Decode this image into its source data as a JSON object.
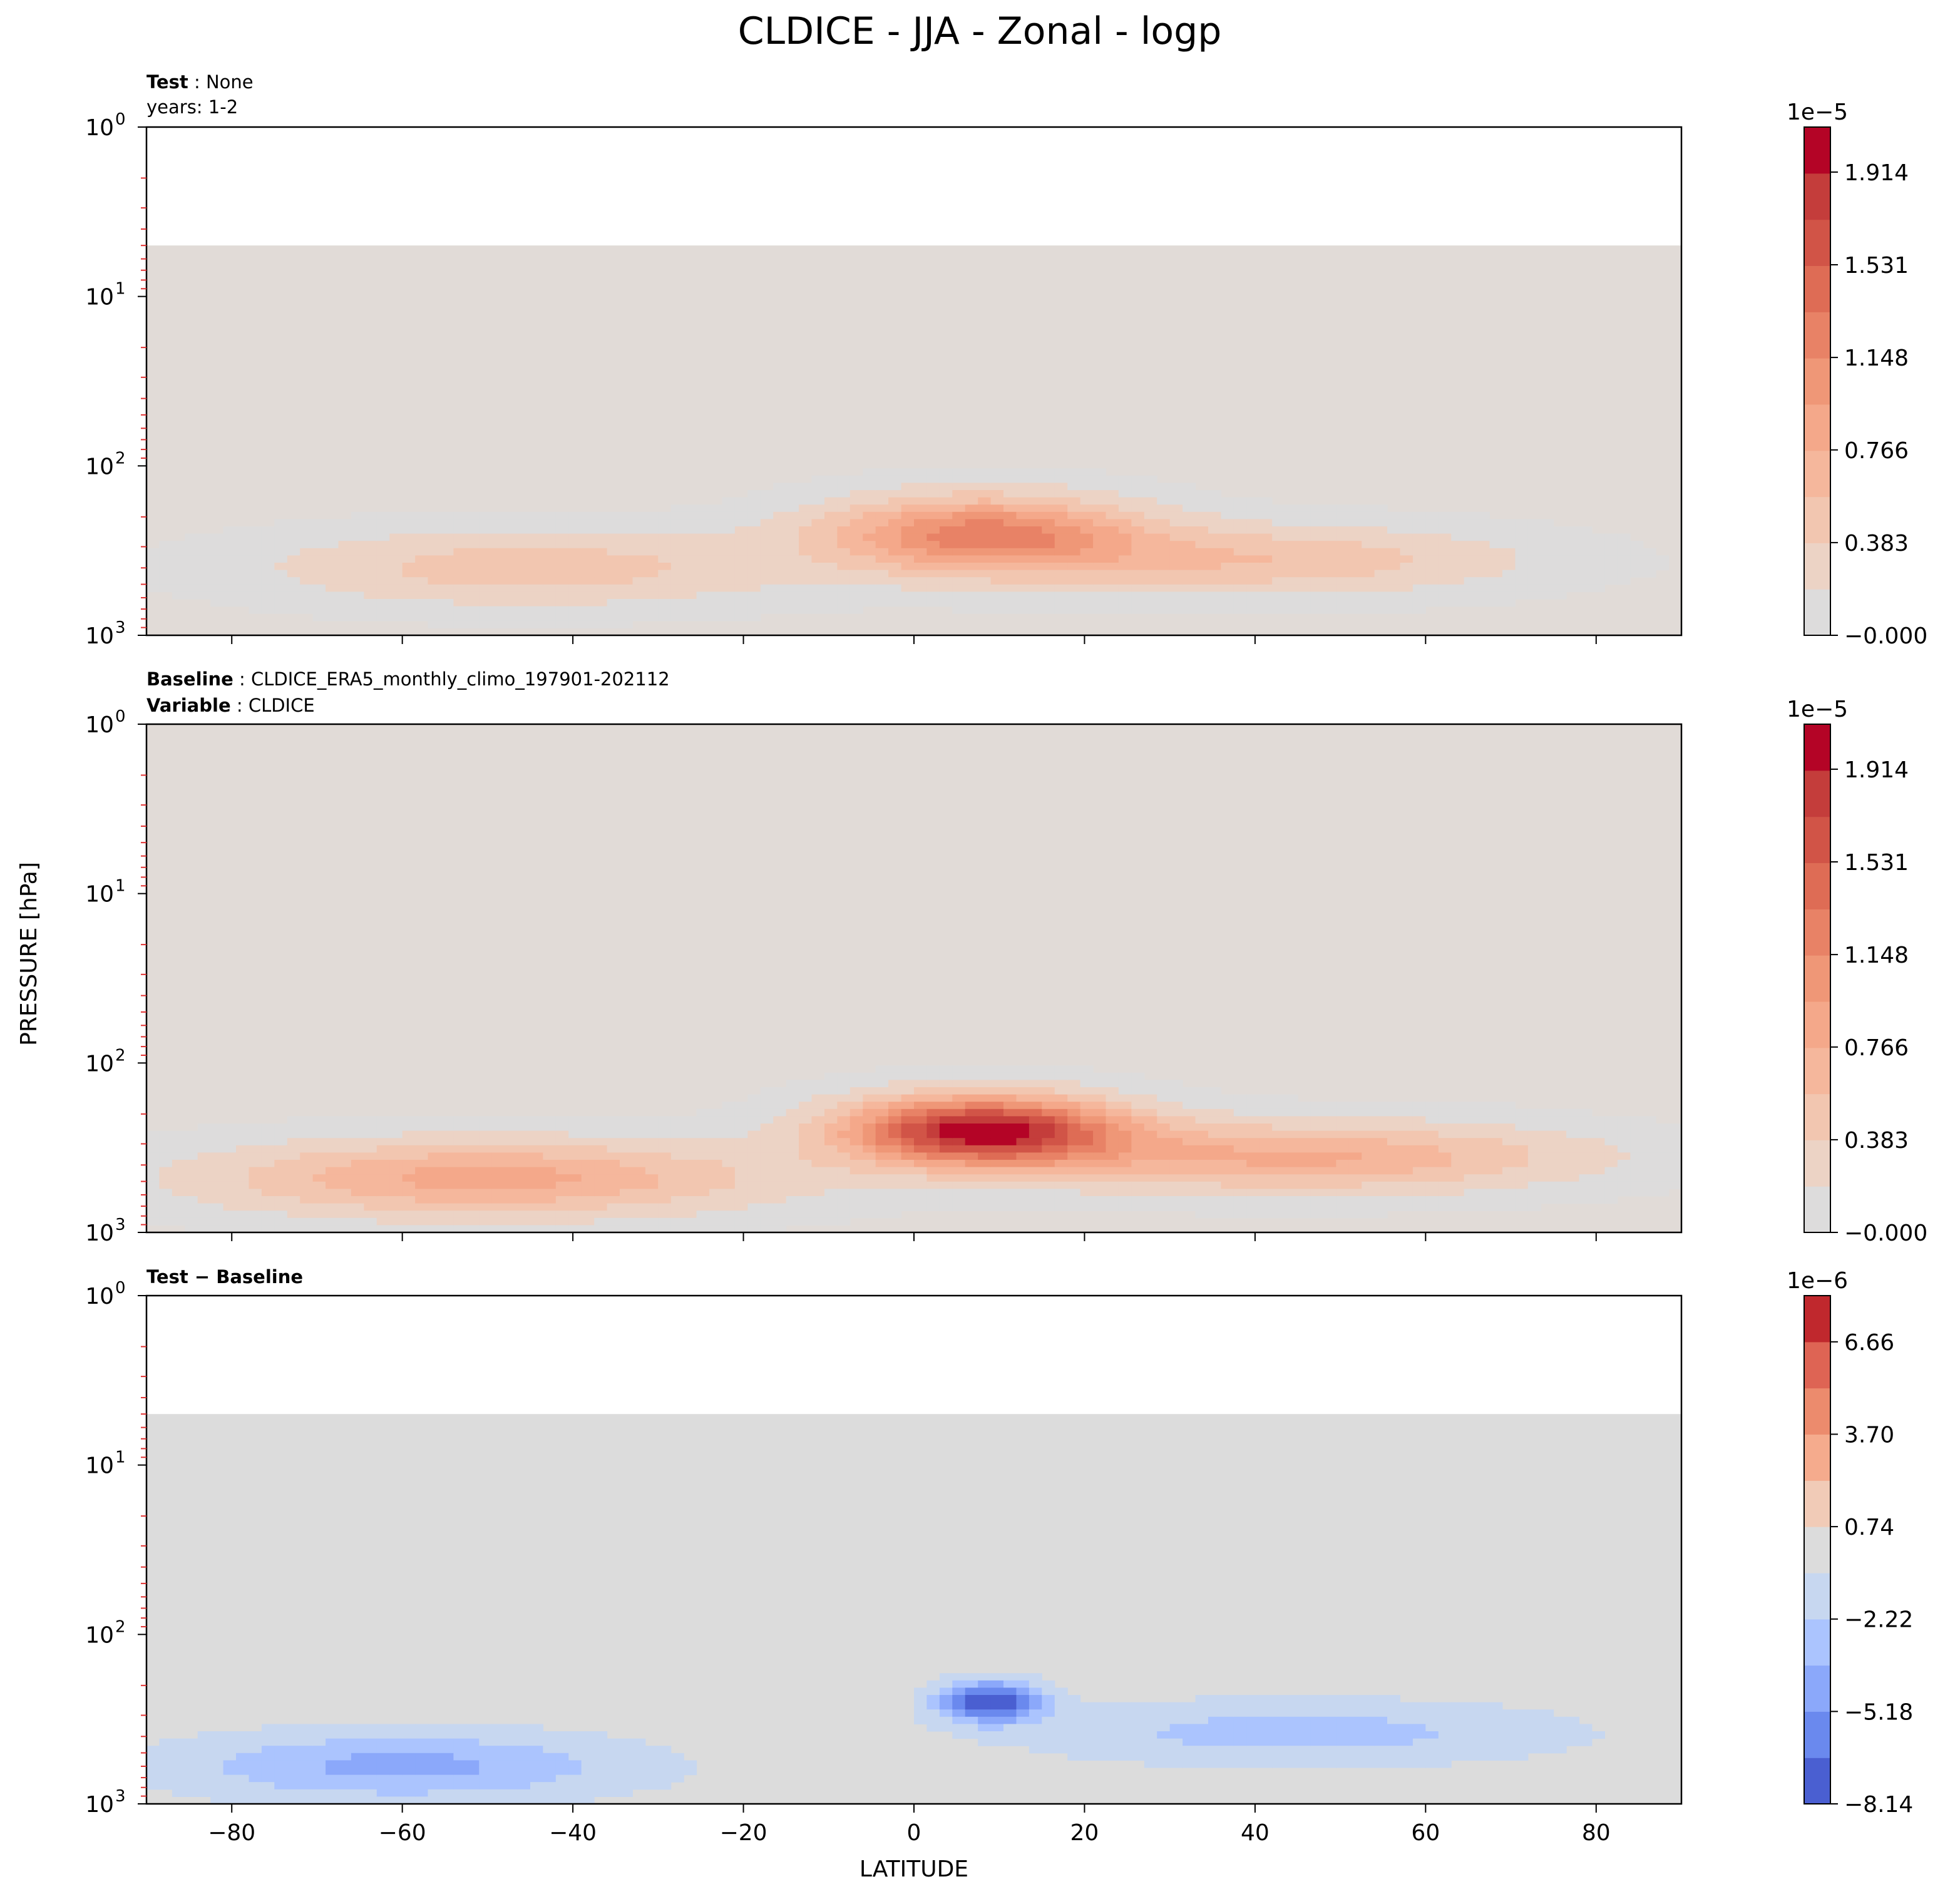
{
  "figure": {
    "title": "CLDICE - JJA - Zonal - logp",
    "ylabel": "PRESSURE [hPa]",
    "xlabel": "LATITUDE"
  },
  "chart_data": [
    {
      "type": "heatmap",
      "panel": "test",
      "subtitle_bold": "Test",
      "subtitle_value": "None",
      "subtitle_line2": "years: 1-2",
      "x_range": [
        -90,
        90
      ],
      "x_ticks": [
        -80,
        -60,
        -40,
        -20,
        0,
        20,
        40,
        60,
        80
      ],
      "y_scale": "log",
      "y_range": [
        1000,
        1
      ],
      "y_ticks": [
        {
          "base": "10",
          "exp": "0",
          "value": 1
        },
        {
          "base": "10",
          "exp": "1",
          "value": 10
        },
        {
          "base": "10",
          "exp": "2",
          "value": 100
        },
        {
          "base": "10",
          "exp": "3",
          "value": 1000
        }
      ],
      "data_top_hpa": 5,
      "background_color": "#e1dbd7",
      "colorbar": {
        "multiplier": "1e−5",
        "tick_labels": [
          "−0.000",
          "0.383",
          "0.766",
          "1.148",
          "1.531",
          "1.914"
        ],
        "tick_values": [
          0,
          0.383,
          0.766,
          1.148,
          1.531,
          1.914
        ],
        "range": [
          0,
          2.1
        ],
        "n_levels": 11,
        "colors": [
          "#dddcdc",
          "#ecd3c5",
          "#f2c6b0",
          "#f5b79c",
          "#f4a88a",
          "#ef9777",
          "#e88266",
          "#de6c55",
          "#d15447",
          "#c43d3b",
          "#b40426"
        ]
      },
      "features": [
        {
          "lat": 8,
          "p": 250,
          "peak": 1.2,
          "width_lat": 18,
          "width_logp": 0.22
        },
        {
          "lat": 40,
          "p": 360,
          "peak": 0.55,
          "width_lat": 30,
          "width_logp": 0.2
        },
        {
          "lat": -45,
          "p": 400,
          "peak": 0.5,
          "width_lat": 30,
          "width_logp": 0.22
        }
      ]
    },
    {
      "type": "heatmap",
      "panel": "baseline",
      "subtitle_bold": "Baseline",
      "subtitle_value": "CLDICE_ERA5_monthly_climo_197901-202112",
      "subtitle_line2_bold": "Variable",
      "subtitle_line2_value": "CLDICE",
      "x_range": [
        -90,
        90
      ],
      "x_ticks": [
        -80,
        -60,
        -40,
        -20,
        0,
        20,
        40,
        60,
        80
      ],
      "y_scale": "log",
      "y_range": [
        1000,
        1
      ],
      "y_ticks": [
        {
          "base": "10",
          "exp": "0",
          "value": 1
        },
        {
          "base": "10",
          "exp": "1",
          "value": 10
        },
        {
          "base": "10",
          "exp": "2",
          "value": 100
        },
        {
          "base": "10",
          "exp": "3",
          "value": 1000
        }
      ],
      "data_top_hpa": 1,
      "background_color": "#e1dbd7",
      "colorbar": {
        "multiplier": "1e−5",
        "tick_labels": [
          "−0.000",
          "0.383",
          "0.766",
          "1.148",
          "1.531",
          "1.914"
        ],
        "tick_values": [
          0,
          0.383,
          0.766,
          1.148,
          1.531,
          1.914
        ],
        "range": [
          0,
          2.1
        ],
        "n_levels": 11,
        "colors": [
          "#dddcdc",
          "#ecd3c5",
          "#f2c6b0",
          "#f5b79c",
          "#f4a88a",
          "#ef9777",
          "#e88266",
          "#de6c55",
          "#d15447",
          "#c43d3b",
          "#b40426"
        ]
      },
      "features": [
        {
          "lat": 8,
          "p": 250,
          "peak": 2.0,
          "width_lat": 16,
          "width_logp": 0.2
        },
        {
          "lat": 45,
          "p": 360,
          "peak": 0.8,
          "width_lat": 32,
          "width_logp": 0.2
        },
        {
          "lat": -50,
          "p": 480,
          "peak": 0.85,
          "width_lat": 32,
          "width_logp": 0.22
        }
      ]
    },
    {
      "type": "heatmap",
      "panel": "difference",
      "subtitle_bold": "Test − Baseline",
      "x_range": [
        -90,
        90
      ],
      "x_ticks": [
        -80,
        -60,
        -40,
        -20,
        0,
        20,
        40,
        60,
        80
      ],
      "x_tick_labels": [
        "−80",
        "−60",
        "−40",
        "−20",
        "0",
        "20",
        "40",
        "60",
        "80"
      ],
      "y_scale": "log",
      "y_range": [
        1000,
        1
      ],
      "y_ticks": [
        {
          "base": "10",
          "exp": "0",
          "value": 1
        },
        {
          "base": "10",
          "exp": "1",
          "value": 10
        },
        {
          "base": "10",
          "exp": "2",
          "value": 100
        },
        {
          "base": "10",
          "exp": "3",
          "value": 1000
        }
      ],
      "data_top_hpa": 5,
      "background_color": "#dcdcdc",
      "colorbar": {
        "multiplier": "1e−6",
        "tick_labels": [
          "−8.14",
          "−5.18",
          "−2.22",
          "0.74",
          "3.70",
          "6.66"
        ],
        "tick_values": [
          -8.14,
          -5.18,
          -2.22,
          0.74,
          3.7,
          6.66
        ],
        "range": [
          -8.14,
          8.14
        ],
        "n_levels": 11,
        "colors": [
          "#4a5fd1",
          "#6a89ee",
          "#8ba8fa",
          "#abc4fe",
          "#c7d7f0",
          "#dcdcdc",
          "#f1cbb7",
          "#f5ab8d",
          "#ec8b6d",
          "#de6454",
          "#c0282d"
        ]
      },
      "features": [
        {
          "lat": 9,
          "p": 250,
          "peak": -8.0,
          "width_lat": 6,
          "width_logp": 0.12
        },
        {
          "lat": 45,
          "p": 380,
          "peak": -3.0,
          "width_lat": 30,
          "width_logp": 0.18
        },
        {
          "lat": -60,
          "p": 600,
          "peak": -4.2,
          "width_lat": 26,
          "width_logp": 0.2
        }
      ]
    }
  ]
}
